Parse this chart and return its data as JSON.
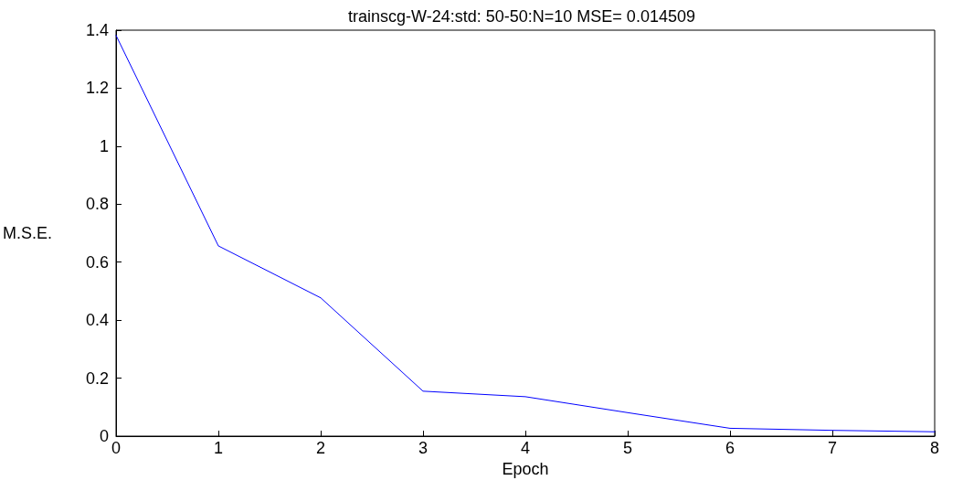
{
  "chart_data": {
    "type": "line",
    "title": "trainscg-W-24:std: 50-50:N=10 MSE= 0.014509",
    "xlabel": "Epoch",
    "ylabel": "M.S.E.",
    "x": [
      0,
      1,
      2,
      3,
      4,
      5,
      6,
      7,
      8
    ],
    "series": [
      {
        "color": "#0000ff",
        "values": [
          1.382,
          0.656,
          0.477,
          0.155,
          0.136,
          0.081,
          0.027,
          0.02,
          0.015
        ]
      }
    ],
    "xlim": [
      0,
      8
    ],
    "xticks": [
      0,
      1,
      2,
      3,
      4,
      5,
      6,
      7,
      8
    ],
    "ylim": [
      0,
      1.4
    ],
    "yticks": [
      0,
      0.2,
      0.4,
      0.6,
      0.8,
      1,
      1.2,
      1.4
    ],
    "grid": false,
    "marker": "none",
    "line_style": "solid"
  }
}
